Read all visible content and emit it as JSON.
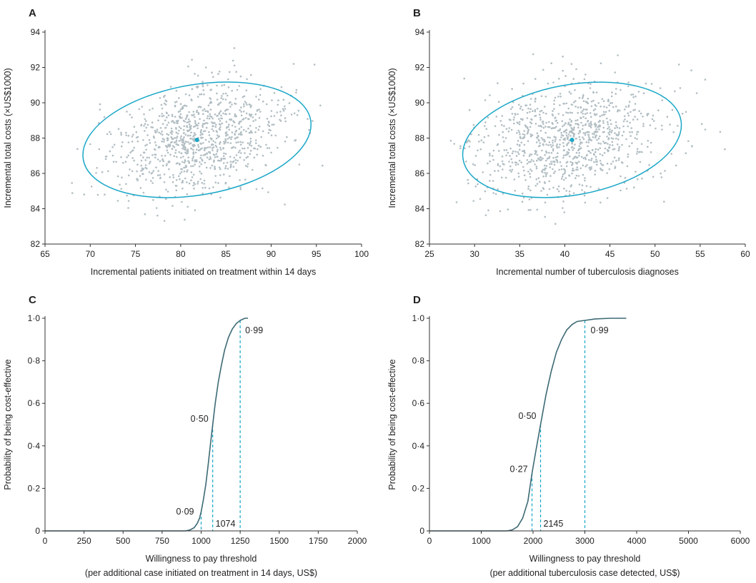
{
  "colors": {
    "accent": "#1aa7c8",
    "scatter": "#b2bec3",
    "curve": "#3d6a74",
    "axis": "#333333"
  },
  "chart_data": [
    {
      "panel": "A",
      "type": "scatter",
      "xlabel": "Incremental patients initiated on treatment within 14 days",
      "ylabel": "Incremental total costs (×US$1000)",
      "xlim": [
        65,
        100
      ],
      "ylim": [
        82,
        94
      ],
      "xticks": [
        "65",
        "70",
        "75",
        "80",
        "85",
        "90",
        "95",
        "100"
      ],
      "yticks": [
        "82",
        "84",
        "86",
        "88",
        "90",
        "92",
        "94"
      ],
      "point_cloud": {
        "approx_count": 1000,
        "mean": [
          81.8,
          87.9
        ],
        "sd": [
          4.8,
          1.65
        ],
        "correlation": 0.32,
        "x_range": [
          67.5,
          98
        ],
        "y_range": [
          83.2,
          93.4
        ]
      },
      "mean_point": [
        81.8,
        87.9
      ],
      "ellipse": {
        "center": [
          81.8,
          87.9
        ],
        "x_extent": [
          68.6,
          94.5
        ],
        "y_extent": [
          84.0,
          91.8
        ],
        "tilt": "positive"
      }
    },
    {
      "panel": "B",
      "type": "scatter",
      "xlabel": "Incremental number of tuberculosis diagnoses",
      "ylabel": "Incremental total costs (×US$1000)",
      "xlim": [
        25,
        60
      ],
      "ylim": [
        82,
        94
      ],
      "xticks": [
        "25",
        "30",
        "35",
        "40",
        "45",
        "50",
        "55",
        "60"
      ],
      "yticks": [
        "82",
        "84",
        "86",
        "88",
        "90",
        "92",
        "94"
      ],
      "point_cloud": {
        "approx_count": 1000,
        "mean": [
          40.8,
          87.9
        ],
        "sd": [
          5.2,
          1.65
        ],
        "correlation": 0.25,
        "x_range": [
          27,
          58.5
        ],
        "y_range": [
          83,
          93.4
        ]
      },
      "mean_point": [
        40.8,
        87.9
      ],
      "ellipse": {
        "center": [
          40.8,
          87.9
        ],
        "x_extent": [
          28.3,
          53.2
        ],
        "y_extent": [
          84.0,
          91.8
        ],
        "tilt": "positive"
      }
    },
    {
      "panel": "C",
      "type": "line",
      "xlabel": "Willingness to pay threshold",
      "xlabel2": "(per additional case initiated on treatment in 14 days, US$)",
      "ylabel": "Probability of being cost-effective",
      "xlim": [
        0,
        2000
      ],
      "ylim": [
        0,
        1.0
      ],
      "xticks": [
        "0",
        "250",
        "500",
        "750",
        "1000",
        "1250",
        "1500",
        "1750",
        "2000"
      ],
      "yticks": [
        "0",
        "0·2",
        "0·4",
        "0·6",
        "0·8",
        "1·0"
      ],
      "x": [
        0,
        900,
        930,
        955,
        975,
        990,
        1000,
        1015,
        1030,
        1045,
        1060,
        1074,
        1090,
        1110,
        1130,
        1150,
        1175,
        1200,
        1225,
        1250,
        1265,
        1280,
        1300
      ],
      "y": [
        0,
        0,
        0.005,
        0.015,
        0.035,
        0.06,
        0.09,
        0.15,
        0.22,
        0.31,
        0.41,
        0.5,
        0.6,
        0.7,
        0.78,
        0.85,
        0.91,
        0.95,
        0.975,
        0.99,
        0.995,
        1.0,
        1.0
      ],
      "annotations": [
        {
          "label": "0·09",
          "x": 1000,
          "y": 0.09
        },
        {
          "label": "0·50",
          "x": 1074,
          "y": 0.5
        },
        {
          "label": "0·99",
          "x": 1250,
          "y": 0.99
        },
        {
          "label": "1074",
          "x": 1074,
          "y": 0
        }
      ]
    },
    {
      "panel": "D",
      "type": "line",
      "xlabel": "Willingness to pay threshold",
      "xlabel2": "(per additional tuberculosis case detected, US$)",
      "ylabel": "Probability of being cost-effective",
      "xlim": [
        0,
        6000
      ],
      "ylim": [
        0,
        1.0
      ],
      "xticks": [
        "0",
        "1000",
        "2000",
        "3000",
        "4000",
        "5000",
        "6000"
      ],
      "yticks": [
        "0",
        "0·2",
        "0·4",
        "0·6",
        "0·8",
        "1·0"
      ],
      "x": [
        0,
        1500,
        1600,
        1700,
        1800,
        1900,
        1980,
        2050,
        2145,
        2250,
        2350,
        2450,
        2550,
        2650,
        2750,
        2850,
        3000,
        3200,
        3500,
        3800
      ],
      "y": [
        0,
        0,
        0.005,
        0.02,
        0.06,
        0.14,
        0.27,
        0.37,
        0.5,
        0.64,
        0.75,
        0.84,
        0.9,
        0.945,
        0.97,
        0.985,
        0.99,
        0.997,
        1.0,
        1.0
      ],
      "annotations": [
        {
          "label": "0·27",
          "x": 1980,
          "y": 0.27
        },
        {
          "label": "0·50",
          "x": 2145,
          "y": 0.5
        },
        {
          "label": "0·99",
          "x": 3000,
          "y": 0.99
        },
        {
          "label": "2145",
          "x": 2145,
          "y": 0
        }
      ]
    }
  ]
}
